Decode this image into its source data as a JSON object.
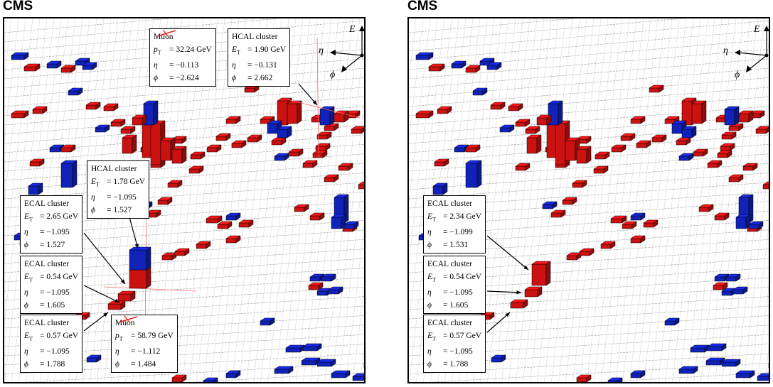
{
  "experiment_label": "CMS",
  "axis_labels": {
    "energy": "E",
    "eta": "η",
    "phi": "ϕ"
  },
  "colors": {
    "ecal": "#cc1111",
    "hcal": "#1122bb",
    "muon_track": "#e02020"
  },
  "left_panel": {
    "logo": "CMS",
    "labels": [
      {
        "id": "muon1",
        "title": "Muon",
        "l1_sym": "p",
        "l1_sub": "T",
        "l1_val": "= 32.24 GeV",
        "l2_sym": "η",
        "l2_val": "= −0.113",
        "l3_sym": "ϕ",
        "l3_val": "= −2.624"
      },
      {
        "id": "hcal1",
        "title": "HCAL cluster",
        "l1_sym": "E",
        "l1_sub": "T",
        "l1_val": "= 1.90 GeV",
        "l2_sym": "η",
        "l2_val": "= −0.131",
        "l3_sym": "ϕ",
        "l3_val": "= 2.662"
      },
      {
        "id": "hcal2",
        "title": "HCAL cluster",
        "l1_sym": "E",
        "l1_sub": "T",
        "l1_val": "= 1.78 GeV",
        "l2_sym": "η",
        "l2_val": "= −1.095",
        "l3_sym": "ϕ",
        "l3_val": "= 1.527"
      },
      {
        "id": "ecal1",
        "title": "ECAL cluster",
        "l1_sym": "E",
        "l1_sub": "T",
        "l1_val": "= 2.65 GeV",
        "l2_sym": "η",
        "l2_val": "= −1.095",
        "l3_sym": "ϕ",
        "l3_val": "= 1.527"
      },
      {
        "id": "ecal2",
        "title": "ECAL cluster",
        "l1_sym": "E",
        "l1_sub": "T",
        "l1_val": "= 0.54 GeV",
        "l2_sym": "η",
        "l2_val": "= −1.095",
        "l3_sym": "ϕ",
        "l3_val": "= 1.605"
      },
      {
        "id": "ecal3",
        "title": "ECAL cluster",
        "l1_sym": "E",
        "l1_sub": "T",
        "l1_val": "= 0.57 GeV",
        "l2_sym": "η",
        "l2_val": "= −1.095",
        "l3_sym": "ϕ",
        "l3_val": "= 1.788"
      },
      {
        "id": "muon2",
        "title": "Muon",
        "l1_sym": "p",
        "l1_sub": "T",
        "l1_val": "= 58.79 GeV",
        "l2_sym": "η",
        "l2_val": "= −1.112",
        "l3_sym": "ϕ",
        "l3_val": "= 1.484"
      }
    ]
  },
  "right_panel": {
    "logo": "CMS",
    "labels": [
      {
        "id": "ecal1",
        "title": "ECAL cluster",
        "l1_sym": "E",
        "l1_sub": "T",
        "l1_val": "= 2.34 GeV",
        "l2_sym": "η",
        "l2_val": "= −1.099",
        "l3_sym": "ϕ",
        "l3_val": "= 1.531"
      },
      {
        "id": "ecal2",
        "title": "ECAL cluster",
        "l1_sym": "E",
        "l1_sub": "T",
        "l1_val": "= 0.54 GeV",
        "l2_sym": "η",
        "l2_val": "= −1.095",
        "l3_sym": "ϕ",
        "l3_val": "= 1.605"
      },
      {
        "id": "ecal3",
        "title": "ECAL cluster",
        "l1_sym": "E",
        "l1_sub": "T",
        "l1_val": "= 0.57 GeV",
        "l2_sym": "η",
        "l2_val": "= −1.095",
        "l3_sym": "ϕ",
        "l3_val": "= 1.788"
      }
    ]
  }
}
